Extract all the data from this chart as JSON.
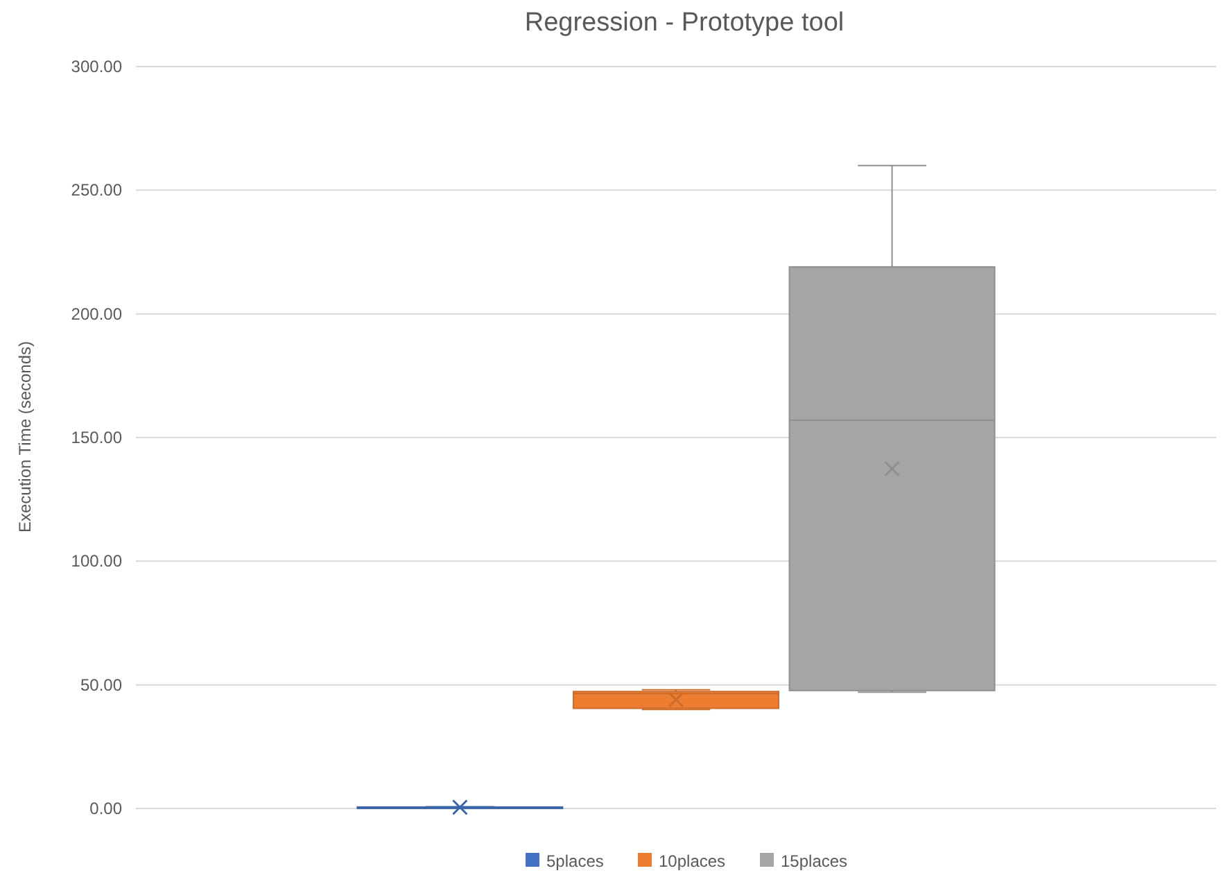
{
  "chart_data": {
    "type": "box",
    "title": "Regression - Prototype tool",
    "ylabel": "Execution Time (seconds)",
    "categories": [
      null
    ],
    "series": [
      {
        "name": "5places",
        "color": "#4472c4",
        "boxes": [
          {
            "low": 0.3,
            "q1": 0.4,
            "median": 0.5,
            "q3": 0.6,
            "high": 0.7,
            "mean": 0.5
          }
        ]
      },
      {
        "name": "10places",
        "color": "#ed7d31",
        "boxes": [
          {
            "low": 40,
            "q1": 40.5,
            "median": 46.5,
            "q3": 47.3,
            "high": 48,
            "mean": 44
          }
        ]
      },
      {
        "name": "15places",
        "color": "#a5a5a5",
        "boxes": [
          {
            "low": 47,
            "q1": 47.7,
            "median": 157,
            "q3": 219,
            "high": 260,
            "mean": 137.4
          }
        ]
      }
    ],
    "ylim": [
      0,
      300
    ],
    "yticks": [
      {
        "value": 0,
        "label": "0.00"
      },
      {
        "value": 50,
        "label": "50.00"
      },
      {
        "value": 100,
        "label": "100.00"
      },
      {
        "value": 150,
        "label": "150.00"
      },
      {
        "value": 200,
        "label": "200.00"
      },
      {
        "value": 250,
        "label": "250.00"
      },
      {
        "value": 300,
        "label": "300.00"
      }
    ],
    "grid": "y",
    "legend": "bottom"
  }
}
